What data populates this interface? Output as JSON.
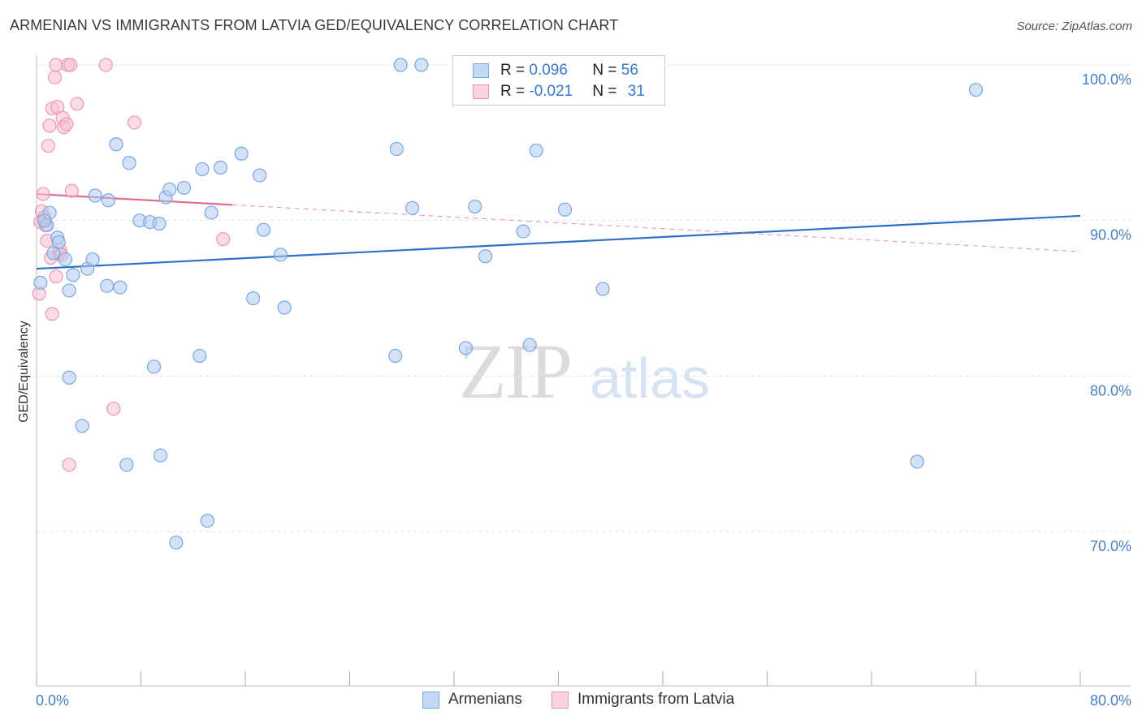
{
  "header": {
    "title": "ARMENIAN VS IMMIGRANTS FROM LATVIA GED/EQUIVALENCY CORRELATION CHART",
    "source": "Source: ZipAtlas.com"
  },
  "watermark": {
    "zip": "ZIP",
    "atlas": "atlas"
  },
  "legend": {
    "rows": [
      {
        "r_label": "R = ",
        "r_value": "0.096",
        "n_label": "N = ",
        "n_value": "56"
      },
      {
        "r_label": "R = ",
        "r_value": "-0.021",
        "n_label": "N = ",
        "n_value": "31"
      }
    ]
  },
  "bottom_legend": {
    "armenians": "Armenians",
    "latvia": "Immigrants from Latvia"
  },
  "colors": {
    "blue_fill": "#aecbf0",
    "blue_stroke": "#7aa6de",
    "blue_line": "#2f6fc8",
    "pink_fill": "#f7bfd0",
    "pink_stroke": "#ec97b1",
    "pink_line": "#e06b93",
    "tick_label": "#4a7fc4",
    "grid": "#e3e3e3"
  },
  "chart_data": {
    "type": "scatter",
    "title": "ARMENIAN VS IMMIGRANTS FROM LATVIA GED/EQUIVALENCY CORRELATION CHART",
    "xlabel": "",
    "ylabel": "GED/Equivalency",
    "xlim": [
      0,
      80
    ],
    "ylim": [
      60,
      101
    ],
    "x_tick_labels": [
      "0.0%",
      "80.0%"
    ],
    "y_ticks": [
      {
        "value": 100,
        "label": "100.0%"
      },
      {
        "value": 90,
        "label": "90.0%"
      },
      {
        "value": 80,
        "label": "80.0%"
      },
      {
        "value": 70,
        "label": "70.0%"
      }
    ],
    "grid": true,
    "legend_placement": "top-center",
    "series": [
      {
        "name": "Armenians",
        "color": "#aecbf0",
        "r": 0.096,
        "n": 56,
        "trend": {
          "x": [
            0,
            80
          ],
          "y": [
            86.9,
            90.3
          ]
        },
        "points": [
          [
            0.8,
            89.7
          ],
          [
            1.0,
            90.5
          ],
          [
            1.6,
            88.9
          ],
          [
            1.7,
            88.6
          ],
          [
            2.2,
            87.5
          ],
          [
            2.5,
            79.9
          ],
          [
            2.5,
            85.5
          ],
          [
            2.8,
            86.5
          ],
          [
            3.5,
            76.8
          ],
          [
            3.9,
            86.9
          ],
          [
            4.3,
            87.5
          ],
          [
            4.5,
            91.6
          ],
          [
            5.4,
            85.8
          ],
          [
            5.5,
            91.3
          ],
          [
            6.1,
            94.9
          ],
          [
            6.4,
            85.7
          ],
          [
            6.9,
            74.3
          ],
          [
            7.1,
            93.7
          ],
          [
            7.9,
            90.0
          ],
          [
            8.7,
            89.9
          ],
          [
            9.0,
            80.6
          ],
          [
            9.4,
            89.8
          ],
          [
            9.5,
            74.9
          ],
          [
            9.9,
            91.5
          ],
          [
            10.2,
            92.0
          ],
          [
            10.7,
            69.3
          ],
          [
            11.3,
            92.1
          ],
          [
            12.5,
            81.3
          ],
          [
            12.7,
            93.3
          ],
          [
            13.1,
            70.7
          ],
          [
            13.4,
            90.5
          ],
          [
            14.1,
            93.4
          ],
          [
            15.7,
            94.3
          ],
          [
            16.6,
            85.0
          ],
          [
            17.1,
            92.9
          ],
          [
            17.4,
            89.4
          ],
          [
            18.7,
            87.8
          ],
          [
            19.0,
            84.4
          ],
          [
            27.5,
            81.3
          ],
          [
            27.6,
            94.6
          ],
          [
            27.9,
            100.0
          ],
          [
            28.8,
            90.8
          ],
          [
            29.5,
            100.0
          ],
          [
            32.9,
            81.8
          ],
          [
            33.6,
            90.9
          ],
          [
            34.4,
            87.7
          ],
          [
            37.3,
            89.3
          ],
          [
            37.8,
            82.0
          ],
          [
            38.3,
            94.5
          ],
          [
            40.5,
            90.7
          ],
          [
            43.4,
            85.6
          ],
          [
            67.5,
            74.5
          ],
          [
            72.0,
            98.4
          ],
          [
            0.3,
            86.0
          ],
          [
            0.6,
            90.0
          ],
          [
            1.3,
            87.9
          ]
        ]
      },
      {
        "name": "Immigrants from Latvia",
        "color": "#f7bfd0",
        "r": -0.021,
        "n": 31,
        "trend": {
          "x": [
            0,
            80
          ],
          "y": [
            91.7,
            88.0
          ]
        },
        "points": [
          [
            0.2,
            85.3
          ],
          [
            0.3,
            89.9
          ],
          [
            0.4,
            90.6
          ],
          [
            0.5,
            91.7
          ],
          [
            0.7,
            89.7
          ],
          [
            0.8,
            88.7
          ],
          [
            0.9,
            94.8
          ],
          [
            1.0,
            96.1
          ],
          [
            1.1,
            87.6
          ],
          [
            1.2,
            84.0
          ],
          [
            1.2,
            97.2
          ],
          [
            1.4,
            99.2
          ],
          [
            1.5,
            86.4
          ],
          [
            1.6,
            97.3
          ],
          [
            1.5,
            100.0
          ],
          [
            1.7,
            87.9
          ],
          [
            1.8,
            88.1
          ],
          [
            1.9,
            87.8
          ],
          [
            2.0,
            96.6
          ],
          [
            2.1,
            96.0
          ],
          [
            2.3,
            96.2
          ],
          [
            2.4,
            100.0
          ],
          [
            2.5,
            74.3
          ],
          [
            2.6,
            100.0
          ],
          [
            2.7,
            91.9
          ],
          [
            3.1,
            97.5
          ],
          [
            5.3,
            100.0
          ],
          [
            5.9,
            77.9
          ],
          [
            7.5,
            96.3
          ],
          [
            14.3,
            88.8
          ],
          [
            0.6,
            90.2
          ]
        ]
      }
    ]
  }
}
